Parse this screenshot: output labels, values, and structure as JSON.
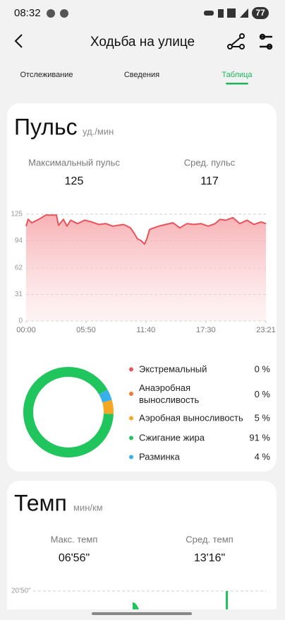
{
  "status_bar": {
    "time": "08:32",
    "battery": "77"
  },
  "header": {
    "title": "Ходьба на улице"
  },
  "tabs": {
    "items": [
      "Отслеживание",
      "Сведения",
      "Таблица"
    ],
    "active": 2
  },
  "pulse": {
    "title": "Пульс",
    "unit": "уд./мин",
    "stats": [
      {
        "label": "Максимальный пульс",
        "value": "125"
      },
      {
        "label": "Сред. пульс",
        "value": "117"
      }
    ],
    "chart": {
      "type": "line",
      "color": "#e8545a",
      "x": [
        0,
        12,
        33,
        74,
        107,
        115,
        177,
        189,
        218,
        239,
        260,
        301,
        342,
        383,
        424,
        466,
        507,
        569,
        610,
        630,
        651,
        672,
        692,
        705,
        721,
        746,
        775,
        816,
        857,
        898,
        939,
        981,
        1022,
        1063,
        1104,
        1133,
        1166,
        1207,
        1248,
        1290,
        1331,
        1372,
        1401
      ],
      "values": [
        111,
        119,
        115,
        119,
        123,
        124,
        124,
        112,
        119,
        111,
        118,
        114,
        118,
        116,
        113,
        114,
        111,
        113,
        109,
        103,
        96,
        94,
        90,
        96,
        107,
        109,
        111,
        113,
        115,
        109,
        114,
        113,
        114,
        111,
        114,
        119,
        118,
        121,
        114,
        118,
        113,
        116,
        114
      ],
      "xlim": [
        0,
        1401
      ],
      "xticks": [
        {
          "value": 0,
          "label": "00:00"
        },
        {
          "value": 350,
          "label": "05:50"
        },
        {
          "value": 700,
          "label": "11:40"
        },
        {
          "value": 1050,
          "label": "17:30"
        },
        {
          "value": 1401,
          "label": "23:21"
        }
      ],
      "ylim": [
        0,
        125
      ],
      "yticks": [
        0,
        31,
        62,
        94,
        125
      ],
      "grid": true
    },
    "zones": {
      "type": "donut",
      "series": [
        {
          "name": "Экстремальный",
          "color": "#e8545a",
          "value": 0,
          "value_label": "0 %"
        },
        {
          "name": "Анаэробная выносливость",
          "color": "#f07a3a",
          "value": 0,
          "value_label": "0 %"
        },
        {
          "name": "Аэробная выносливость",
          "color": "#f5a623",
          "value": 5,
          "value_label": "5 %"
        },
        {
          "name": "Сжигание жира",
          "color": "#21c55d",
          "value": 91,
          "value_label": "91 %"
        },
        {
          "name": "Разминка",
          "color": "#3ab0ea",
          "value": 4,
          "value_label": "4 %"
        }
      ]
    }
  },
  "pace": {
    "title": "Темп",
    "unit": "мин/км",
    "stats": [
      {
        "label": "Макс. темп",
        "value": "06'56\""
      },
      {
        "label": "Сред. темп",
        "value": "13'16\""
      }
    ],
    "chart": {
      "ytick_label": "20'50\""
    }
  }
}
